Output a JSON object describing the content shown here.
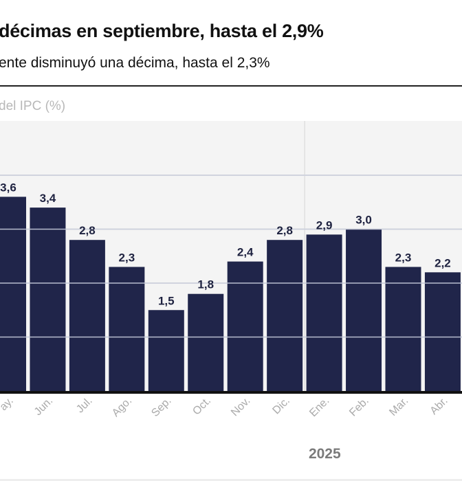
{
  "header": {
    "title": "décimas en septiembre, hasta el 2,9%",
    "subtitle": "ente disminuyó una décima, hasta el 2,3%"
  },
  "colors": {
    "bar": "#20254a",
    "plot_bg": "#f4f4f4",
    "grid": "#dcdcdc",
    "label": "#1e2240",
    "tick": "#aaaaaa",
    "year": "#7a7a7a"
  },
  "chart_data": {
    "type": "bar",
    "title": "décimas en septiembre, hasta el 2,9%",
    "subtitle": "ente disminuyó una décima, hasta el 2,3%",
    "ylabel": "del IPC (%)",
    "xlabel": "",
    "categories": [
      "ay.",
      "Jun.",
      "Jul.",
      "Ago.",
      "Sep.",
      "Oct.",
      "Nov.",
      "Dic.",
      "Ene.",
      "Feb.",
      "Mar.",
      "Abr."
    ],
    "values": [
      3.6,
      3.4,
      2.8,
      2.3,
      1.5,
      1.8,
      2.4,
      2.8,
      2.9,
      3.0,
      2.3,
      2.2
    ],
    "value_labels": [
      "3,6",
      "3,4",
      "2,8",
      "2,3",
      "1,5",
      "1,8",
      "2,4",
      "2,8",
      "2,9",
      "3,0",
      "2,3",
      "2,2"
    ],
    "ylim": [
      0,
      5
    ],
    "gridlines": [
      1,
      2,
      3,
      4
    ],
    "grid": true,
    "year_label": "2025",
    "year_starts_at": "Ene."
  }
}
